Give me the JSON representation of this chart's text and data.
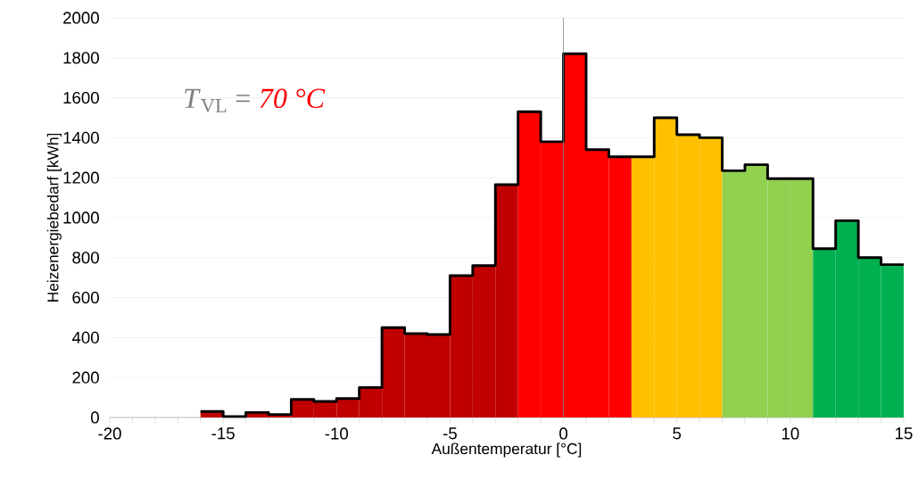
{
  "chart_data": {
    "type": "histogram",
    "xlabel": "Außentemperatur [°C]",
    "ylabel": "Heizenergiebedarf [kWh]",
    "annotations": [
      "*T*$_{VL}$ =",
      "70 °C"
    ],
    "bins": [
      -16,
      -15,
      -14,
      -13,
      -12,
      -11,
      -10,
      -9,
      -8,
      -7,
      -6,
      -5,
      -4,
      -3,
      -2,
      -1,
      0,
      1,
      2,
      3,
      4,
      5,
      6,
      7,
      8,
      9,
      10,
      11,
      12,
      13,
      14,
      15
    ],
    "values": [
      30,
      5,
      25,
      15,
      90,
      80,
      95,
      150,
      450,
      420,
      415,
      710,
      760,
      1165,
      1530,
      1380,
      1820,
      1340,
      1305,
      1305,
      1500,
      1415,
      1400,
      1235,
      1265,
      1195,
      1195,
      845,
      985,
      800,
      765
    ],
    "colors": [
      "#c00000",
      "#c00000",
      "#c00000",
      "#c00000",
      "#c00000",
      "#c00000",
      "#c00000",
      "#c00000",
      "#c00000",
      "#c00000",
      "#c00000",
      "#c00000",
      "#c00000",
      "#c00000",
      "#ff0000",
      "#ff0000",
      "#ff0000",
      "#ff0000",
      "#ff0000",
      "#ffc000",
      "#ffc000",
      "#ffc000",
      "#ffc000",
      "#92d050",
      "#92d050",
      "#92d050",
      "#92d050",
      "#00b050",
      "#00b050",
      "#00b050",
      "#00b050"
    ],
    "xlim": [
      -20,
      15
    ],
    "xticks": [
      -20,
      -15,
      -10,
      -5,
      0,
      5,
      10,
      15
    ],
    "ylim": [
      0,
      2000
    ],
    "yticks": [
      0,
      200,
      400,
      600,
      800,
      1000,
      1200,
      1400,
      1600,
      1800,
      2000
    ],
    "grid": "y",
    "series": [
      {
        "type": "step",
        "color": "#000000",
        "x": [
          -16,
          -15,
          -14,
          -13,
          -12,
          -11,
          -10,
          -9,
          -8,
          -7,
          -6,
          -5,
          -4,
          -3,
          -2,
          -1,
          0,
          1,
          2,
          3,
          4,
          5,
          6,
          7,
          8,
          9,
          10,
          11,
          12,
          13,
          14,
          15
        ],
        "values": [
          30,
          5,
          25,
          15,
          90,
          80,
          95,
          150,
          450,
          420,
          415,
          710,
          760,
          1165,
          1530,
          1380,
          1820,
          1340,
          1305,
          1305,
          1500,
          1415,
          1400,
          1235,
          1265,
          1195,
          1195,
          845,
          985,
          800,
          765,
          765
        ]
      }
    ],
    "ref_lines": [
      {
        "axis": "x",
        "value": 0,
        "color": "#808080"
      }
    ]
  }
}
